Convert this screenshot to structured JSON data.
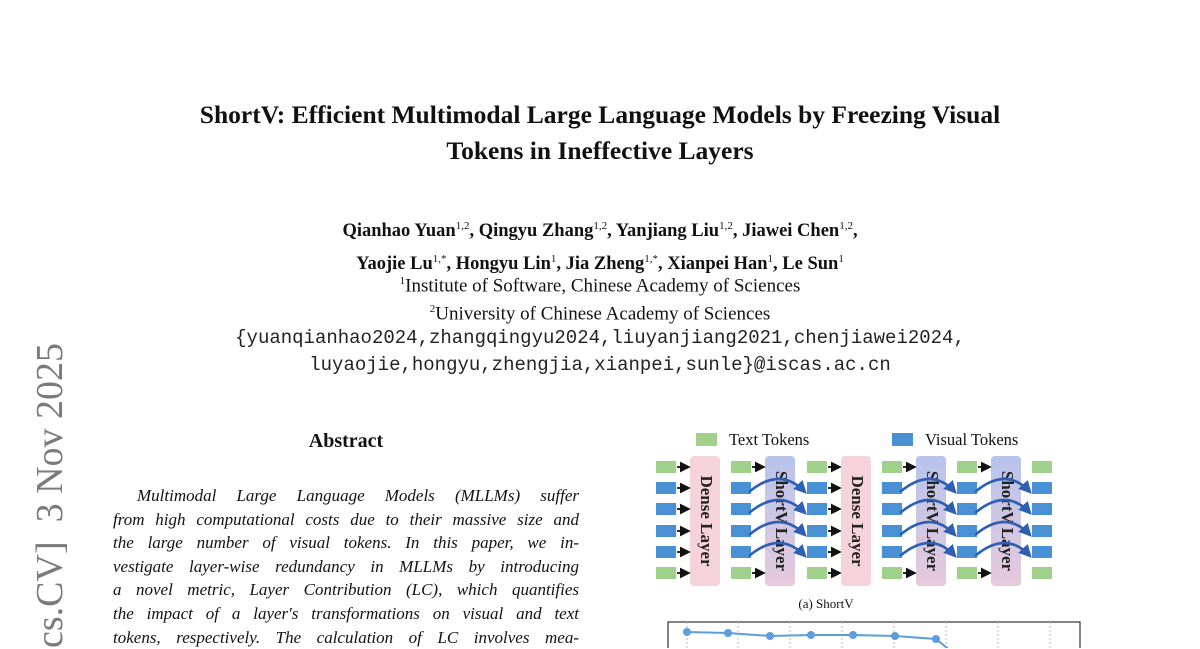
{
  "paper": {
    "title_line1": "ShortV: Efficient Multimodal Large Language Models by Freezing Visual",
    "title_line2": "Tokens in Ineffective Layers",
    "authors_line1": [
      {
        "name": "Qianhao Yuan",
        "sup": "1,2",
        "sep": ", "
      },
      {
        "name": "Qingyu Zhang",
        "sup": "1,2",
        "sep": ", "
      },
      {
        "name": "Yanjiang Liu",
        "sup": "1,2",
        "sep": ", "
      },
      {
        "name": "Jiawei Chen",
        "sup": "1,2",
        "sep": ","
      }
    ],
    "authors_line2": [
      {
        "name": "Yaojie Lu",
        "sup": "1,*",
        "sep": ", "
      },
      {
        "name": "Hongyu Lin",
        "sup": "1",
        "sep": ", "
      },
      {
        "name": "Jia Zheng",
        "sup": "1,*",
        "sep": ", "
      },
      {
        "name": "Xianpei Han",
        "sup": "1",
        "sep": ", "
      },
      {
        "name": "Le Sun",
        "sup": "1",
        "sep": ""
      }
    ],
    "affiliations": [
      {
        "sup": "1",
        "text": "Institute of Software, Chinese Academy of Sciences"
      },
      {
        "sup": "2",
        "text": "University of Chinese Academy of Sciences"
      }
    ],
    "email_line1": "{yuanqianhao2024,zhangqingyu2024,liuyanjiang2021,chenjiawei2024,",
    "email_line2": "luyaojie,hongyu,zhengjia,xianpei,sunle}@iscas.ac.cn",
    "arxiv_stamp": "cs.CV]  3 Nov 2025",
    "abstract_heading": "Abstract",
    "abstract_lines": [
      "Multimodal Large Language Models (MLLMs) suffer",
      "from high computational costs due to their massive size and",
      "the large number of visual tokens.  In this paper, we in-",
      "vestigate layer-wise redundancy in MLLMs by introducing",
      "a novel metric, Layer Contribution (LC), which quantifies",
      "the impact of a layer's transformations on visual and text",
      "tokens, respectively.  The calculation of LC involves mea-"
    ]
  },
  "figure": {
    "legend": [
      {
        "label": "Text Tokens",
        "color": "#9fd18b"
      },
      {
        "label": "Visual Tokens",
        "color": "#4a90d4"
      }
    ],
    "layers": [
      {
        "label": "Dense Layer",
        "type": "dense",
        "color": "#f6d3da"
      },
      {
        "label": "ShortV Layer",
        "type": "shortv",
        "color": "#b9c6ea"
      },
      {
        "label": "Dense Layer",
        "type": "dense",
        "color": "#f6d3da"
      },
      {
        "label": "ShortV Layer",
        "type": "shortv",
        "color": "#b9c6ea"
      },
      {
        "label": "ShortV Layer",
        "type": "shortv",
        "color": "#b9c6ea"
      }
    ],
    "caption": "(a) ShortV",
    "line_color": "#5a9fdc"
  }
}
